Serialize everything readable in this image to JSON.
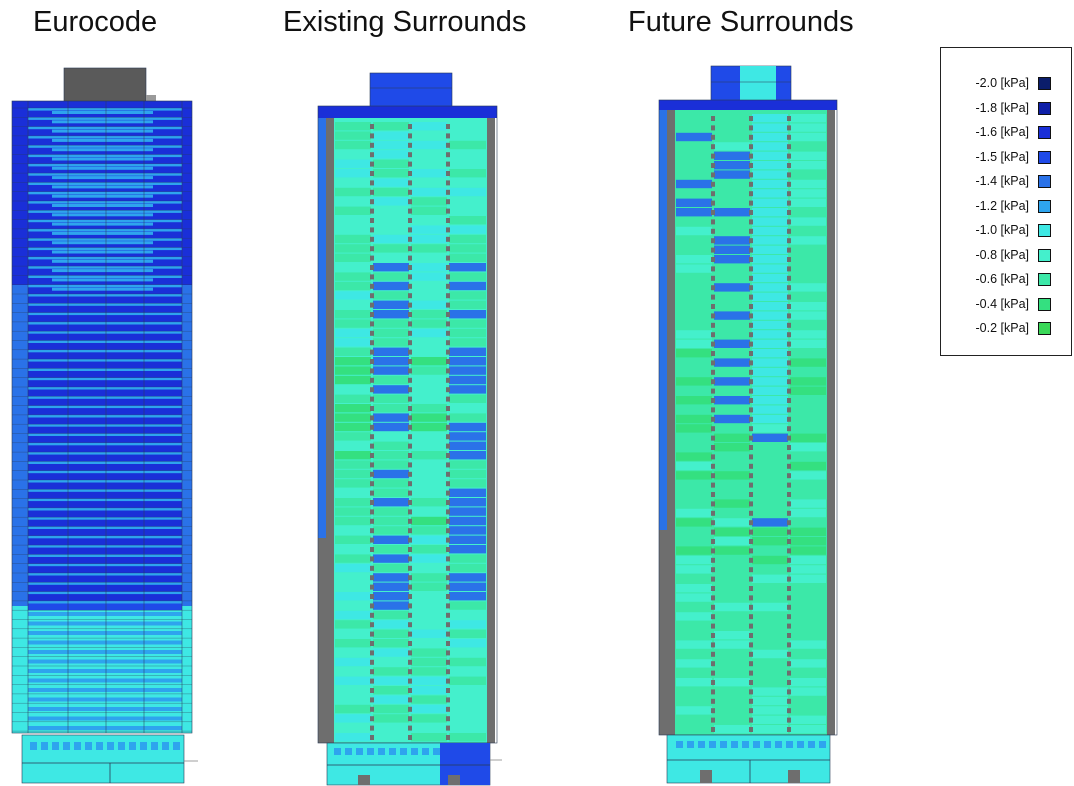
{
  "titles": {
    "eurocode": "Eurocode",
    "existing": "Existing Surrounds",
    "future": "Future Surrounds"
  },
  "legend": [
    {
      "label": "-2.0 [kPa]",
      "color": "#0b1d6b"
    },
    {
      "label": "-1.8 [kPa]",
      "color": "#0e1fa8"
    },
    {
      "label": "-1.6 [kPa]",
      "color": "#1a2fd8"
    },
    {
      "label": "-1.5 [kPa]",
      "color": "#1f4ae8"
    },
    {
      "label": "-1.4 [kPa]",
      "color": "#2a72e8"
    },
    {
      "label": "-1.2 [kPa]",
      "color": "#2ea4ee"
    },
    {
      "label": "-1.0 [kPa]",
      "color": "#3ee8e4"
    },
    {
      "label": "-0.8 [kPa]",
      "color": "#44f0cc"
    },
    {
      "label": "-0.6 [kPa]",
      "color": "#3ce8a8"
    },
    {
      "label": "-0.4 [kPa]",
      "color": "#34e080"
    },
    {
      "label": "-0.2 [kPa]",
      "color": "#3ad858"
    }
  ],
  "colors": {
    "frame_grey": "#6e6e6e",
    "roof_grey": "#5a5a5a",
    "outline": "#2a3a55"
  }
}
